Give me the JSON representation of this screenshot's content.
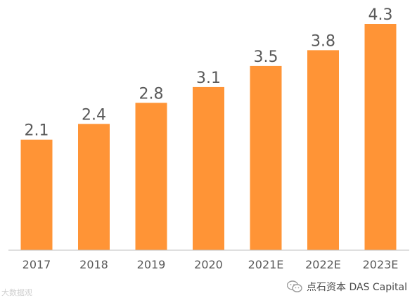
{
  "chart_data": {
    "type": "bar",
    "categories": [
      "2017",
      "2018",
      "2019",
      "2020",
      "2021E",
      "2022E",
      "2023E"
    ],
    "values": [
      2.1,
      2.4,
      2.8,
      3.1,
      3.5,
      3.8,
      4.3
    ],
    "value_labels": [
      "2.1",
      "2.4",
      "2.8",
      "3.1",
      "3.5",
      "3.8",
      "4.3"
    ],
    "ylim": [
      0,
      4.3
    ],
    "grid": false,
    "bar_color": "#FF9436",
    "axis_color": "#BFBFBF",
    "label_color": "#595959"
  },
  "watermark_left": "大数据观",
  "watermark_right": {
    "icon": "wechat-icon",
    "text": "点石资本 DAS Capital"
  }
}
